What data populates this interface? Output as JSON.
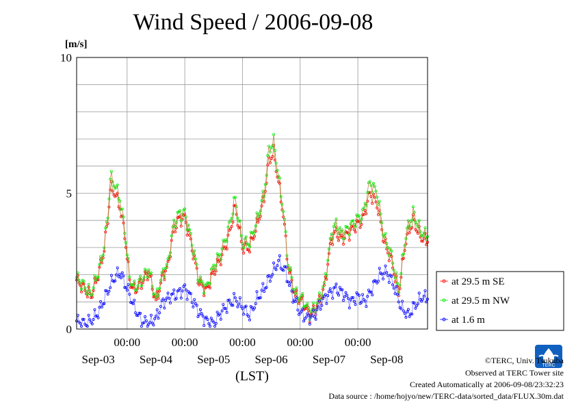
{
  "chart_data": {
    "type": "line",
    "title": "Wind Speed / 2006-09-08",
    "ylabel": "[m/s]",
    "xlabel": "(LST)",
    "ylim": [
      0,
      10
    ],
    "yticks": [
      0,
      5,
      10
    ],
    "xticks_time": [
      "00:00",
      "00:00",
      "00:00",
      "00:00",
      "00:00"
    ],
    "xticks_date": [
      "Sep-03",
      "Sep-04",
      "Sep-05",
      "Sep-06",
      "Sep-07",
      "Sep-08"
    ],
    "x_unit": "hours since start of Sep-03 (LST)",
    "xlim": [
      0,
      146
    ],
    "grid": true,
    "legend_position": "right",
    "series": [
      {
        "name": "at 29.5 m SE",
        "color": "#ff0000",
        "x": [
          0,
          3,
          6,
          9,
          11,
          13,
          14,
          16,
          18,
          20,
          22,
          24,
          27,
          30,
          33,
          36,
          38,
          40,
          42,
          45,
          48,
          51,
          54,
          57,
          60,
          63,
          66,
          69,
          72,
          75,
          78,
          80,
          82,
          84,
          86,
          88,
          91,
          94,
          97,
          100,
          103,
          106,
          108,
          110,
          113,
          116,
          119,
          122,
          125,
          128,
          131,
          134,
          137,
          140,
          143,
          146
        ],
        "y": [
          1.8,
          1.5,
          1.2,
          2.0,
          2.7,
          4.0,
          5.2,
          5.0,
          4.5,
          3.5,
          1.8,
          1.4,
          1.7,
          2.1,
          1.0,
          2.0,
          2.3,
          3.5,
          4.0,
          4.1,
          3.0,
          1.7,
          1.4,
          2.1,
          2.6,
          3.3,
          4.5,
          3.0,
          3.0,
          3.8,
          4.8,
          6.2,
          6.5,
          5.4,
          4.2,
          2.3,
          1.2,
          1.0,
          0.5,
          0.8,
          1.5,
          3.3,
          3.6,
          3.3,
          3.5,
          3.8,
          4.0,
          5.0,
          4.6,
          3.2,
          2.5,
          1.3,
          3.3,
          4.0,
          3.4,
          3.2
        ]
      },
      {
        "name": "at 29.5 m NW",
        "color": "#00ee00",
        "x": [
          0,
          3,
          6,
          9,
          11,
          13,
          14,
          16,
          18,
          20,
          22,
          24,
          27,
          30,
          33,
          36,
          38,
          40,
          42,
          45,
          48,
          51,
          54,
          57,
          60,
          63,
          66,
          69,
          72,
          75,
          78,
          80,
          82,
          84,
          86,
          88,
          91,
          94,
          97,
          100,
          103,
          106,
          108,
          110,
          113,
          116,
          119,
          122,
          125,
          128,
          131,
          134,
          137,
          140,
          143,
          146
        ],
        "y": [
          1.9,
          1.6,
          1.3,
          2.1,
          2.8,
          4.2,
          5.6,
          5.3,
          4.8,
          3.7,
          1.9,
          1.5,
          1.8,
          2.2,
          1.1,
          2.1,
          2.4,
          3.7,
          4.2,
          4.3,
          3.2,
          1.8,
          1.5,
          2.3,
          2.8,
          3.6,
          4.8,
          3.2,
          3.2,
          4.0,
          5.0,
          6.6,
          6.9,
          5.6,
          4.4,
          2.4,
          1.3,
          1.1,
          0.6,
          0.9,
          1.6,
          3.5,
          3.9,
          3.5,
          3.7,
          4.0,
          4.2,
          5.4,
          5.0,
          3.4,
          2.7,
          1.4,
          3.5,
          4.3,
          3.6,
          3.4
        ]
      },
      {
        "name": "at 1.6 m",
        "color": "#0000ff",
        "x": [
          0,
          3,
          6,
          9,
          12,
          15,
          18,
          21,
          24,
          27,
          30,
          33,
          36,
          39,
          42,
          45,
          48,
          51,
          54,
          57,
          60,
          63,
          66,
          69,
          72,
          75,
          78,
          81,
          84,
          87,
          90,
          93,
          96,
          99,
          102,
          105,
          108,
          111,
          114,
          117,
          120,
          123,
          126,
          129,
          132,
          135,
          138,
          141,
          144,
          146
        ],
        "y": [
          0.3,
          0.2,
          0.3,
          0.6,
          1.2,
          1.8,
          2.1,
          1.5,
          0.8,
          0.3,
          0.2,
          0.4,
          1.0,
          1.2,
          1.3,
          1.5,
          1.1,
          0.6,
          0.3,
          0.2,
          0.6,
          0.9,
          1.1,
          0.8,
          0.5,
          1.1,
          1.5,
          2.0,
          2.5,
          2.1,
          1.2,
          0.6,
          0.4,
          0.5,
          1.0,
          1.3,
          1.5,
          1.3,
          1.0,
          1.2,
          1.0,
          1.5,
          2.0,
          2.1,
          1.6,
          0.8,
          0.5,
          0.9,
          1.2,
          1.1
        ]
      }
    ]
  },
  "footer": {
    "copyright": "©TERC, Univ. Tsukuba",
    "observed": "Observed at TERC Tower site",
    "created": "Created Automatically at 2006-09-08/23:32:23",
    "source": "Data source : /home/hojyo/new/TERC-data/sorted_data/FLUX.30m.dat"
  },
  "logo": {
    "text": "TERC",
    "color": "#1060c0"
  }
}
